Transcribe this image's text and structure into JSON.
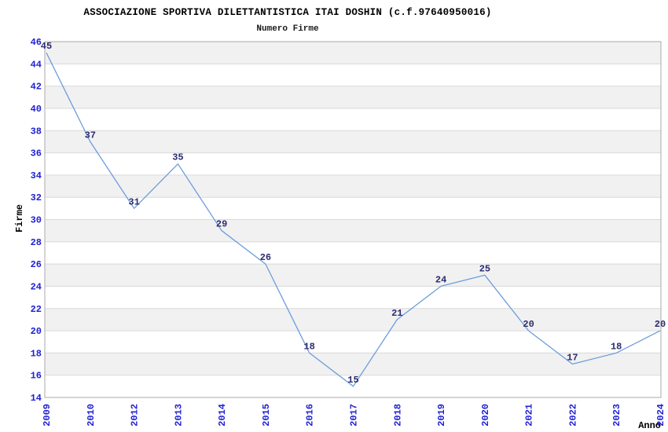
{
  "chart_data": {
    "type": "line",
    "title": "ASSOCIAZIONE SPORTIVA DILETTANTISTICA ITAI DOSHIN (c.f.97640950016)",
    "subtitle": "Numero Firme",
    "xlabel": "Anno",
    "ylabel": "Firme",
    "categories": [
      "2009",
      "2010",
      "2012",
      "2013",
      "2014",
      "2015",
      "2016",
      "2017",
      "2018",
      "2019",
      "2020",
      "2021",
      "2022",
      "2023",
      "2024"
    ],
    "values": [
      45,
      37,
      31,
      35,
      29,
      26,
      18,
      15,
      21,
      24,
      25,
      20,
      17,
      18,
      20
    ],
    "point_labels": [
      "45",
      "37",
      "31",
      "35",
      "29",
      "26",
      "18",
      "15",
      "21",
      "24",
      "25",
      "20",
      "17",
      "18",
      "20"
    ],
    "ylim": [
      14,
      46
    ],
    "ytick_step": 2,
    "yticks": [
      14,
      16,
      18,
      20,
      22,
      24,
      26,
      28,
      30,
      32,
      34,
      36,
      38,
      40,
      42,
      44,
      46
    ],
    "grid": "horizontal lines with alternating shaded bands every 2 units",
    "legend": "none",
    "colors": {
      "line": "#6b9ddc",
      "tick_label_text": "#1f1fd6",
      "point_label_text": "#2b2b70",
      "band_fill": "#f1f1f1",
      "grid_line": "#d9d9d9",
      "frame": "#ababab",
      "background": "#ffffff"
    }
  }
}
